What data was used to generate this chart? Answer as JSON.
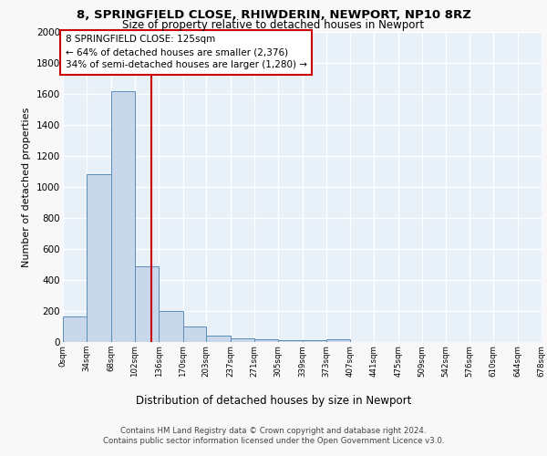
{
  "title1": "8, SPRINGFIELD CLOSE, RHIWDERIN, NEWPORT, NP10 8RZ",
  "title2": "Size of property relative to detached houses in Newport",
  "xlabel": "Distribution of detached houses by size in Newport",
  "ylabel": "Number of detached properties",
  "bar_edges": [
    0,
    34,
    68,
    102,
    136,
    170,
    203,
    237,
    271,
    305,
    339,
    373,
    407,
    441,
    475,
    509,
    542,
    576,
    610,
    644,
    678
  ],
  "bar_heights": [
    165,
    1080,
    1620,
    490,
    200,
    100,
    40,
    25,
    15,
    10,
    10,
    15,
    0,
    0,
    0,
    0,
    0,
    0,
    0,
    0
  ],
  "bar_color": "#c8d8ea",
  "bar_edge_color": "#5b8db8",
  "vline_x": 125,
  "vline_color": "#cc0000",
  "annotation_text": "8 SPRINGFIELD CLOSE: 125sqm\n← 64% of detached houses are smaller (2,376)\n34% of semi-detached houses are larger (1,280) →",
  "annotation_box_color": "#ffffff",
  "annotation_box_edge": "#cc0000",
  "ylim": [
    0,
    2000
  ],
  "yticks": [
    0,
    200,
    400,
    600,
    800,
    1000,
    1200,
    1400,
    1600,
    1800,
    2000
  ],
  "xtick_labels": [
    "0sqm",
    "34sqm",
    "68sqm",
    "102sqm",
    "136sqm",
    "170sqm",
    "203sqm",
    "237sqm",
    "271sqm",
    "305sqm",
    "339sqm",
    "373sqm",
    "407sqm",
    "441sqm",
    "475sqm",
    "509sqm",
    "542sqm",
    "576sqm",
    "610sqm",
    "644sqm",
    "678sqm"
  ],
  "bg_color": "#e8f0f8",
  "grid_color": "#ffffff",
  "fig_bg_color": "#f8f8f8",
  "footer": "Contains HM Land Registry data © Crown copyright and database right 2024.\nContains public sector information licensed under the Open Government Licence v3.0."
}
